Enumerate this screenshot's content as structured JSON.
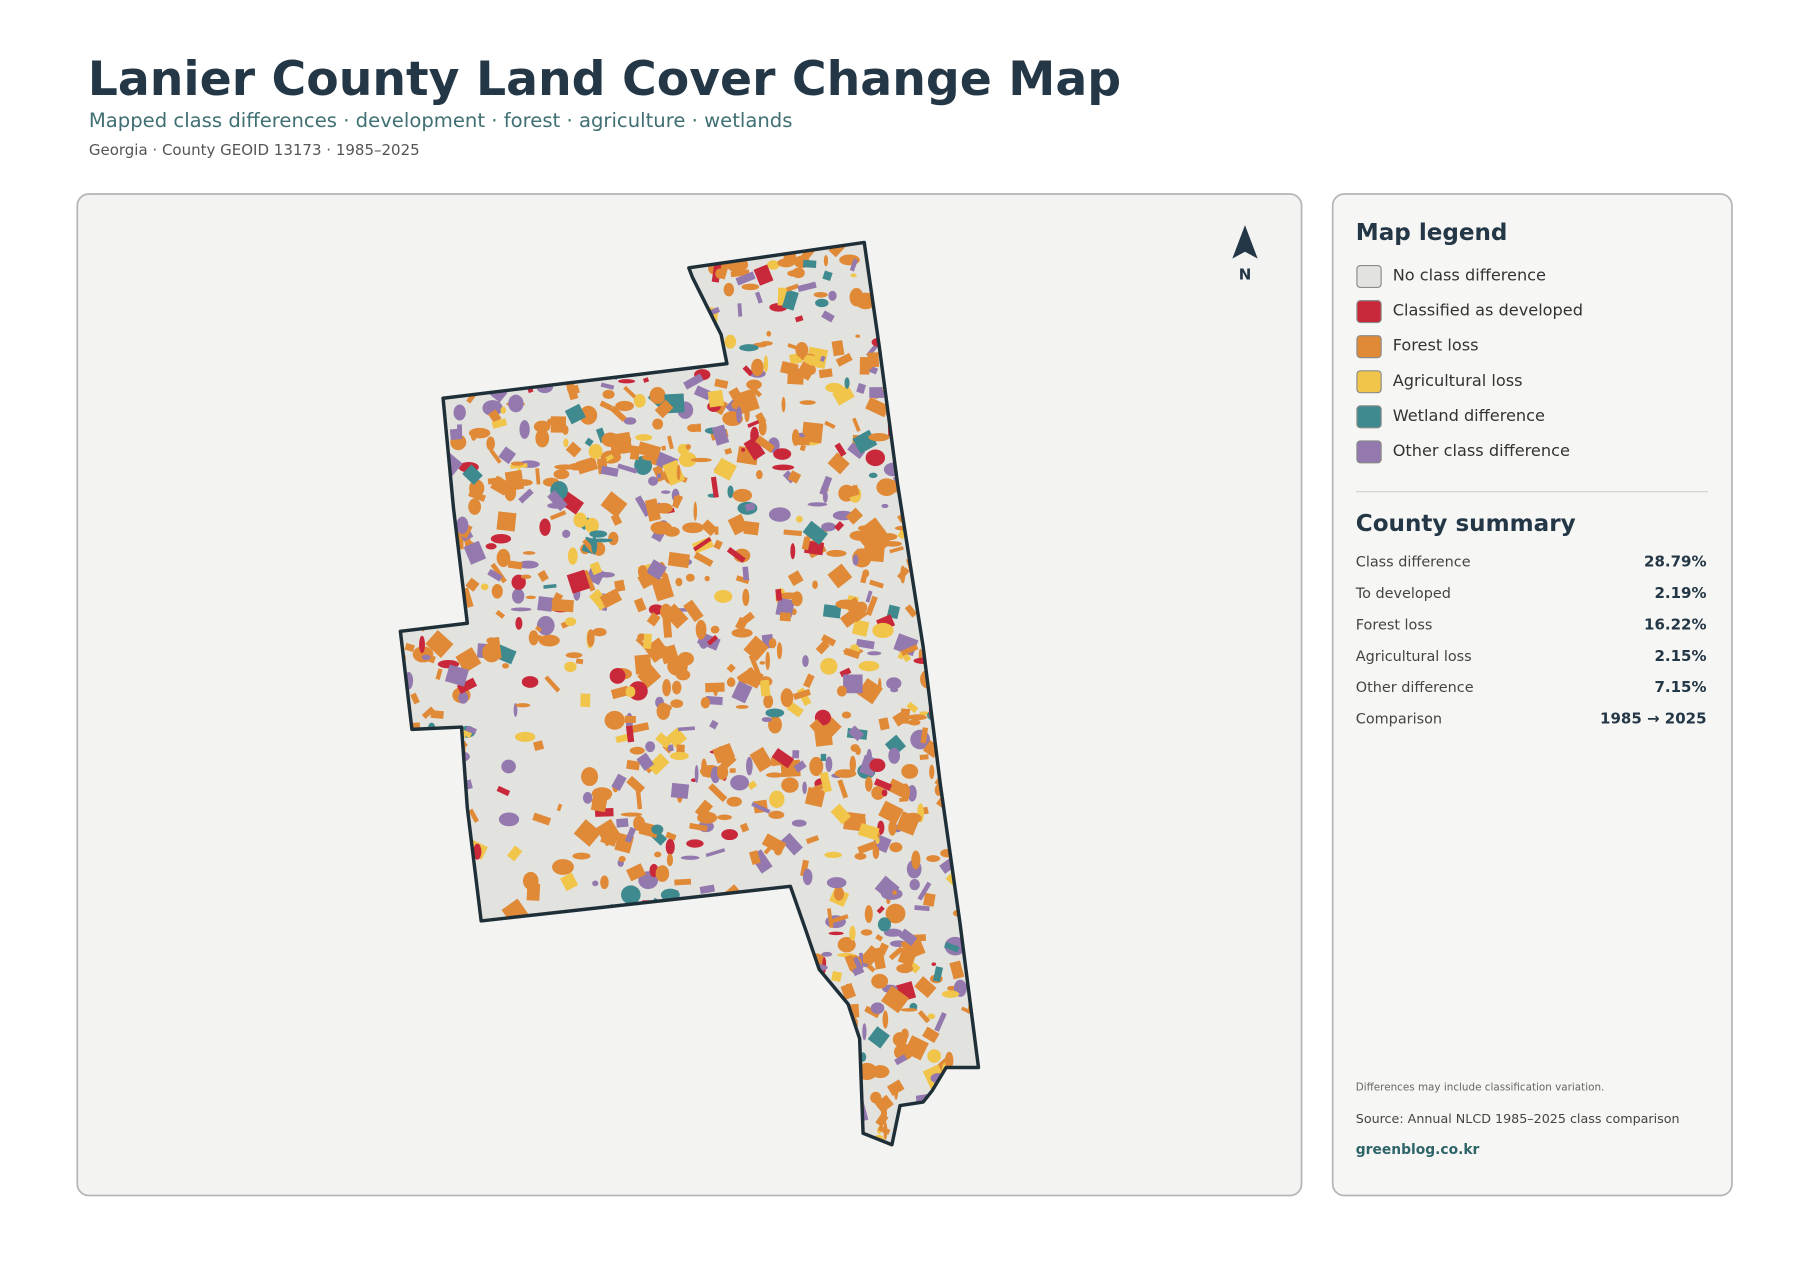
{
  "header": {
    "title": "Lanier County Land Cover Change Map",
    "subtitle": "Mapped class differences · development · forest · agriculture · wetlands",
    "meta": "Georgia · County GEOID 13173 · 1985–2025"
  },
  "map": {
    "north_label": "N"
  },
  "legend": {
    "title": "Map legend",
    "items": [
      {
        "label": "No class difference",
        "color": "#e2e2de"
      },
      {
        "label": "Classified as developed",
        "color": "#c8283a"
      },
      {
        "label": "Forest loss",
        "color": "#e08a38"
      },
      {
        "label": "Agricultural loss",
        "color": "#f0c54a"
      },
      {
        "label": "Wetland difference",
        "color": "#3f8a8f"
      },
      {
        "label": "Other class difference",
        "color": "#9479ae"
      }
    ]
  },
  "summary": {
    "title": "County summary",
    "rows": [
      {
        "label": "Class difference",
        "value": "28.79%"
      },
      {
        "label": "To developed",
        "value": "2.19%"
      },
      {
        "label": "Forest loss",
        "value": "16.22%"
      },
      {
        "label": "Agricultural loss",
        "value": "2.15%"
      },
      {
        "label": "Other difference",
        "value": "7.15%"
      },
      {
        "label": "Comparison",
        "value": "1985 → 2025"
      }
    ]
  },
  "footer": {
    "note": "Differences may include classification variation.",
    "source": "Source: Annual NLCD 1985–2025 class comparison",
    "credit": "greenblog.co.kr"
  }
}
